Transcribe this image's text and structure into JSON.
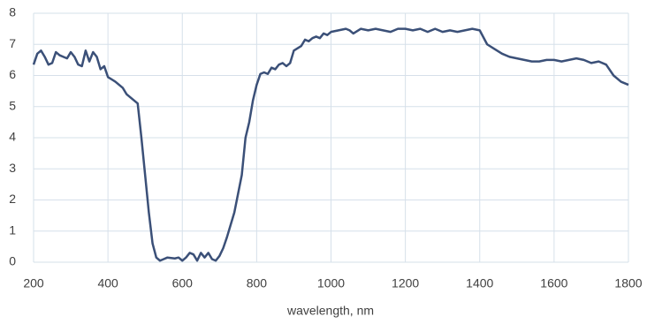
{
  "chart_data": {
    "type": "line",
    "x_label": "wavelength, nm",
    "x": [
      200,
      210,
      220,
      230,
      240,
      250,
      260,
      270,
      280,
      290,
      300,
      310,
      320,
      330,
      340,
      350,
      360,
      370,
      380,
      390,
      400,
      420,
      440,
      450,
      470,
      480,
      490,
      500,
      510,
      520,
      530,
      540,
      550,
      560,
      580,
      590,
      600,
      610,
      620,
      630,
      640,
      650,
      660,
      670,
      680,
      690,
      700,
      710,
      720,
      740,
      760,
      770,
      780,
      790,
      800,
      810,
      820,
      830,
      840,
      850,
      860,
      870,
      880,
      890,
      900,
      920,
      930,
      940,
      950,
      960,
      970,
      980,
      990,
      1000,
      1020,
      1040,
      1050,
      1060,
      1080,
      1100,
      1120,
      1140,
      1160,
      1180,
      1200,
      1220,
      1240,
      1260,
      1280,
      1300,
      1320,
      1340,
      1360,
      1380,
      1400,
      1420,
      1440,
      1460,
      1480,
      1500,
      1520,
      1540,
      1560,
      1580,
      1600,
      1620,
      1640,
      1660,
      1680,
      1700,
      1720,
      1740,
      1760,
      1780,
      1800
    ],
    "values": [
      6.35,
      6.7,
      6.8,
      6.6,
      6.35,
      6.4,
      6.75,
      6.65,
      6.6,
      6.55,
      6.75,
      6.6,
      6.35,
      6.3,
      6.8,
      6.45,
      6.75,
      6.6,
      6.2,
      6.3,
      5.95,
      5.8,
      5.6,
      5.4,
      5.2,
      5.1,
      4.0,
      2.8,
      1.6,
      0.6,
      0.15,
      0.05,
      0.1,
      0.15,
      0.12,
      0.15,
      0.05,
      0.15,
      0.3,
      0.25,
      0.05,
      0.3,
      0.15,
      0.3,
      0.1,
      0.05,
      0.2,
      0.45,
      0.8,
      1.6,
      2.8,
      4.0,
      4.5,
      5.2,
      5.7,
      6.05,
      6.1,
      6.05,
      6.25,
      6.2,
      6.35,
      6.4,
      6.3,
      6.4,
      6.8,
      6.95,
      7.15,
      7.1,
      7.2,
      7.25,
      7.2,
      7.35,
      7.3,
      7.4,
      7.45,
      7.5,
      7.45,
      7.35,
      7.5,
      7.45,
      7.5,
      7.45,
      7.4,
      7.5,
      7.5,
      7.45,
      7.5,
      7.4,
      7.5,
      7.4,
      7.45,
      7.4,
      7.45,
      7.5,
      7.45,
      7.0,
      6.85,
      6.7,
      6.6,
      6.55,
      6.5,
      6.45,
      6.45,
      6.5,
      6.5,
      6.45,
      6.5,
      6.55,
      6.5,
      6.4,
      6.45,
      6.35,
      6.0,
      5.8,
      5.7
    ],
    "color": "#3b5078",
    "xlim": [
      200,
      1800
    ],
    "xticks": [
      200,
      400,
      600,
      800,
      1000,
      1200,
      1400,
      1600,
      1800
    ],
    "ylim": [
      0,
      8
    ],
    "yticks": [
      0,
      1,
      2,
      3,
      4,
      5,
      6,
      7,
      8
    ],
    "grid": true
  }
}
